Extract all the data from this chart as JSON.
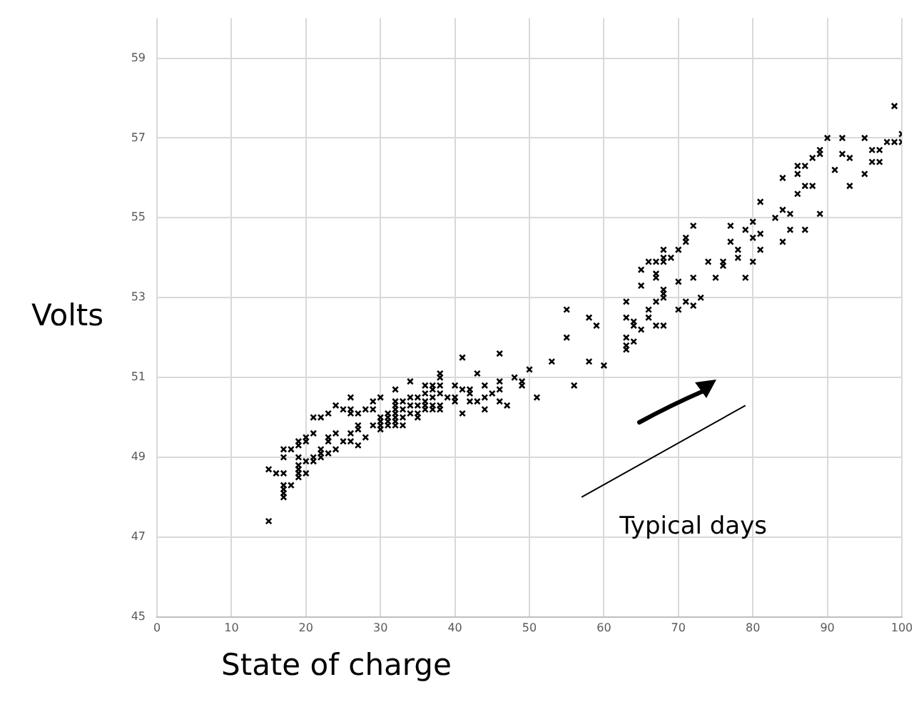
{
  "chart_data": {
    "type": "scatter",
    "xlabel": "State of charge",
    "ylabel": "Volts",
    "xlim": [
      0,
      100
    ],
    "ylim": [
      45,
      60
    ],
    "xticks": [
      0,
      10,
      20,
      30,
      40,
      50,
      60,
      70,
      80,
      90,
      100
    ],
    "yticks": [
      45,
      47,
      49,
      51,
      53,
      55,
      57,
      59
    ],
    "grid": true,
    "annotations": [
      "Typical days"
    ],
    "series": [
      {
        "type": "scatter",
        "marker": "cross",
        "color": "#000000",
        "x": [
          15,
          15,
          16,
          17,
          17,
          17,
          17,
          17,
          18,
          17,
          17,
          18,
          19,
          19,
          19,
          19,
          19,
          19,
          19,
          20,
          20,
          20,
          20,
          21,
          21,
          21,
          21,
          22,
          22,
          22,
          22,
          23,
          23,
          23,
          23,
          24,
          24,
          24,
          25,
          25,
          26,
          26,
          26,
          26,
          26,
          27,
          27,
          27,
          27,
          28,
          28,
          29,
          29,
          29,
          30,
          30,
          30,
          30,
          30,
          31,
          31,
          31,
          31,
          32,
          32,
          32,
          32,
          32,
          32,
          32,
          32,
          33,
          33,
          33,
          33,
          34,
          34,
          34,
          34,
          35,
          35,
          35,
          35,
          36,
          36,
          36,
          36,
          36,
          37,
          37,
          37,
          37,
          37,
          38,
          38,
          38,
          38,
          38,
          38,
          39,
          40,
          40,
          40,
          41,
          41,
          41,
          42,
          42,
          42,
          43,
          43,
          44,
          44,
          44,
          45,
          46,
          46,
          46,
          46,
          47,
          48,
          49,
          49,
          50,
          51,
          53,
          55,
          55,
          56,
          58,
          59,
          58,
          60,
          63,
          63,
          63,
          63,
          63,
          64,
          64,
          64,
          65,
          65,
          65,
          66,
          66,
          66,
          67,
          67,
          67,
          67,
          67,
          68,
          68,
          68,
          68,
          68,
          68,
          68,
          69,
          70,
          70,
          70,
          71,
          71,
          71,
          72,
          72,
          72,
          73,
          74,
          75,
          76,
          76,
          77,
          77,
          78,
          78,
          79,
          79,
          80,
          80,
          80,
          81,
          81,
          81,
          83,
          84,
          84,
          84,
          85,
          85,
          86,
          86,
          86,
          87,
          87,
          87,
          88,
          88,
          89,
          89,
          89,
          90,
          91,
          92,
          92,
          93,
          93,
          95,
          95,
          96,
          96,
          97,
          97,
          98,
          99,
          99,
          100,
          100
        ],
        "values": [
          47.4,
          48.7,
          48.6,
          48.6,
          48.3,
          48.2,
          48.1,
          48.0,
          48.3,
          49.0,
          49.2,
          49.2,
          49.3,
          49.4,
          49.0,
          48.8,
          48.7,
          48.6,
          48.5,
          48.6,
          48.9,
          49.4,
          49.5,
          49.0,
          48.9,
          49.6,
          50.0,
          50.0,
          49.2,
          49.1,
          49.0,
          50.1,
          49.5,
          49.4,
          49.1,
          50.3,
          49.6,
          49.2,
          50.2,
          49.4,
          50.5,
          50.2,
          50.1,
          49.6,
          49.4,
          50.1,
          49.8,
          49.7,
          49.3,
          50.2,
          49.5,
          50.4,
          50.2,
          49.8,
          50.5,
          50.0,
          49.9,
          49.7,
          49.8,
          50.1,
          50.0,
          49.9,
          49.8,
          50.7,
          50.4,
          50.3,
          50.2,
          50.1,
          50.0,
          49.9,
          49.8,
          50.4,
          50.2,
          50.0,
          49.8,
          50.9,
          50.5,
          50.3,
          50.1,
          50.5,
          50.3,
          50.1,
          50.0,
          50.8,
          50.6,
          50.4,
          50.3,
          50.2,
          50.8,
          50.7,
          50.5,
          50.3,
          50.2,
          51.1,
          51.0,
          50.8,
          50.6,
          50.3,
          50.2,
          50.5,
          50.8,
          50.5,
          50.4,
          51.5,
          50.7,
          50.1,
          50.7,
          50.6,
          50.4,
          51.1,
          50.4,
          50.8,
          50.5,
          50.2,
          50.6,
          51.6,
          50.9,
          50.7,
          50.4,
          50.3,
          51.0,
          50.9,
          50.8,
          51.2,
          50.5,
          51.4,
          52.7,
          52.0,
          50.8,
          52.5,
          52.3,
          51.4,
          51.3,
          52.9,
          52.5,
          52.0,
          51.8,
          51.7,
          52.4,
          52.3,
          51.9,
          52.2,
          53.7,
          53.3,
          53.9,
          52.7,
          52.5,
          53.9,
          53.6,
          53.5,
          52.9,
          52.3,
          54.2,
          54.0,
          53.9,
          53.2,
          53.1,
          53.0,
          52.3,
          54.0,
          54.2,
          53.4,
          52.7,
          54.5,
          54.4,
          52.9,
          54.8,
          53.5,
          52.8,
          53.0,
          53.9,
          53.5,
          53.9,
          53.8,
          54.8,
          54.4,
          54.2,
          54.0,
          54.7,
          53.5,
          54.9,
          54.5,
          53.9,
          55.4,
          54.6,
          54.2,
          55.0,
          55.2,
          56.0,
          54.4,
          55.1,
          54.7,
          56.3,
          56.1,
          55.6,
          56.3,
          54.7,
          55.8,
          55.8,
          56.5,
          56.7,
          56.6,
          55.1,
          57.0,
          56.2,
          57.0,
          56.6,
          56.5,
          55.8,
          57.0,
          56.1,
          56.7,
          56.4,
          56.7,
          56.4,
          56.9,
          57.8,
          56.9,
          57.1,
          56.9
        ]
      },
      {
        "type": "line",
        "color": "#000000",
        "x": [
          57,
          79
        ],
        "values": [
          48.0,
          50.3
        ]
      }
    ]
  }
}
